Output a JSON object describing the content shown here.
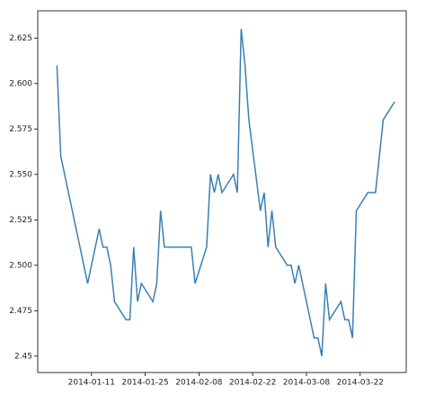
{
  "chart_data": {
    "type": "line",
    "x": [
      "2014-01-02",
      "2014-01-03",
      "2014-01-06",
      "2014-01-07",
      "2014-01-08",
      "2014-01-09",
      "2014-01-10",
      "2014-01-13",
      "2014-01-14",
      "2014-01-15",
      "2014-01-16",
      "2014-01-17",
      "2014-01-20",
      "2014-01-21",
      "2014-01-22",
      "2014-01-23",
      "2014-01-24",
      "2014-01-27",
      "2014-01-28",
      "2014-01-29",
      "2014-01-30",
      "2014-01-31",
      "2014-02-03",
      "2014-02-04",
      "2014-02-05",
      "2014-02-06",
      "2014-02-07",
      "2014-02-10",
      "2014-02-11",
      "2014-02-12",
      "2014-02-13",
      "2014-02-14",
      "2014-02-17",
      "2014-02-18",
      "2014-02-19",
      "2014-02-20",
      "2014-02-21",
      "2014-02-24",
      "2014-02-25",
      "2014-02-26",
      "2014-02-27",
      "2014-02-28",
      "2014-03-03",
      "2014-03-04",
      "2014-03-05",
      "2014-03-06",
      "2014-03-07",
      "2014-03-10",
      "2014-03-11",
      "2014-03-12",
      "2014-03-13",
      "2014-03-14",
      "2014-03-17",
      "2014-03-18",
      "2014-03-19",
      "2014-03-20",
      "2014-03-21",
      "2014-03-24",
      "2014-03-25",
      "2014-03-26",
      "2014-03-27",
      "2014-03-28",
      "2014-03-31"
    ],
    "series": [
      {
        "color": "#3a7fb4",
        "values": [
          2.61,
          2.56,
          2.53,
          2.52,
          2.51,
          2.5,
          2.49,
          2.52,
          2.51,
          2.51,
          2.5,
          2.48,
          2.47,
          2.47,
          2.51,
          2.48,
          2.49,
          2.48,
          2.49,
          2.53,
          2.51,
          2.51,
          2.51,
          2.51,
          2.51,
          2.51,
          2.49,
          2.51,
          2.55,
          2.54,
          2.55,
          2.54,
          2.55,
          2.54,
          2.63,
          2.61,
          2.58,
          2.53,
          2.54,
          2.51,
          2.53,
          2.51,
          2.5,
          2.5,
          2.49,
          2.5,
          2.49,
          2.46,
          2.46,
          2.45,
          2.49,
          2.47,
          2.48,
          2.47,
          2.47,
          2.46,
          2.53,
          2.54,
          2.54,
          2.54,
          2.56,
          2.58,
          2.59
        ]
      }
    ],
    "xlim": [
      "2013-12-28",
      "2014-04-03"
    ],
    "xticks": [
      "2014-01-11",
      "2014-01-25",
      "2014-02-08",
      "2014-02-22",
      "2014-03-08",
      "2014-03-22"
    ],
    "ylim": [
      2.441,
      2.64
    ],
    "yticks": [
      2.45,
      {
        "value": 2.475,
        "label": "2.475"
      },
      {
        "value": 2.5,
        "label": "2.500"
      },
      {
        "value": 2.525,
        "label": "2.525"
      },
      {
        "value": 2.55,
        "label": "2.550"
      },
      {
        "value": 2.575,
        "label": "2.575"
      },
      {
        "value": 2.6,
        "label": "2.600"
      },
      {
        "value": 2.625,
        "label": "2.625"
      }
    ]
  }
}
